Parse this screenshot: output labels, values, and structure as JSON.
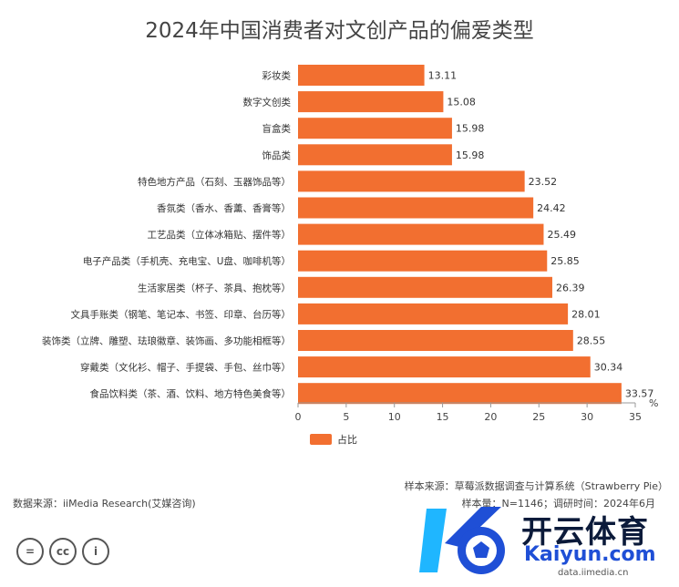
{
  "chart_data": {
    "type": "bar",
    "orientation": "horizontal",
    "title": "2024年中国消费者对文创产品的偏爱类型",
    "unit": "%",
    "categories": [
      "彩妆类",
      "数字文创类",
      "盲盒类",
      "饰品类",
      "特色地方产品（石刻、玉器饰品等）",
      "香氛类（香水、香薰、香膏等）",
      "工艺品类（立体冰箱贴、摆件等）",
      "电子产品类（手机壳、充电宝、U盘、咖啡机等）",
      "生活家居类（杯子、茶具、抱枕等）",
      "文具手账类（钢笔、笔记本、书签、印章、台历等）",
      "装饰类（立牌、雕塑、珐琅徽章、装饰画、多功能相框等）",
      "穿戴类（文化衫、帽子、手提袋、手包、丝巾等）",
      "食品饮料类（茶、酒、饮料、地方特色美食等）"
    ],
    "series": [
      {
        "name": "占比",
        "values": [
          13.11,
          15.08,
          15.98,
          15.98,
          23.52,
          24.42,
          25.49,
          25.85,
          26.39,
          28.01,
          28.55,
          30.34,
          33.57
        ],
        "value_labels": [
          "13.11",
          "15.08",
          "15.98",
          "15.98",
          "23.52",
          "24.42",
          "25.49",
          "25.85",
          "26.39",
          "28.01",
          "28.55",
          "30.34",
          "33.57"
        ],
        "color": "#f26f30"
      }
    ],
    "xlim": [
      0,
      35
    ],
    "xticks": [
      0,
      5,
      10,
      15,
      20,
      25,
      30,
      35
    ],
    "xtick_labels": [
      "0",
      "5",
      "10",
      "15",
      "20",
      "25",
      "30",
      "35"
    ],
    "grid": false,
    "legend_position": "bottom-left"
  },
  "footer": {
    "sample_source": "样本来源：草莓派数据调查与计算系统（Strawberry Pie）",
    "sample_info": "样本量：N=1146；调研时间：2024年6月",
    "data_source": "数据来源：iiMedia Research(艾媒咨询)"
  },
  "cc_badges": [
    "=",
    "cc",
    "i"
  ],
  "watermark": {
    "brand": "开云体育",
    "sub": "Kaiyun.com",
    "domain": "data.iimedia.cn"
  }
}
